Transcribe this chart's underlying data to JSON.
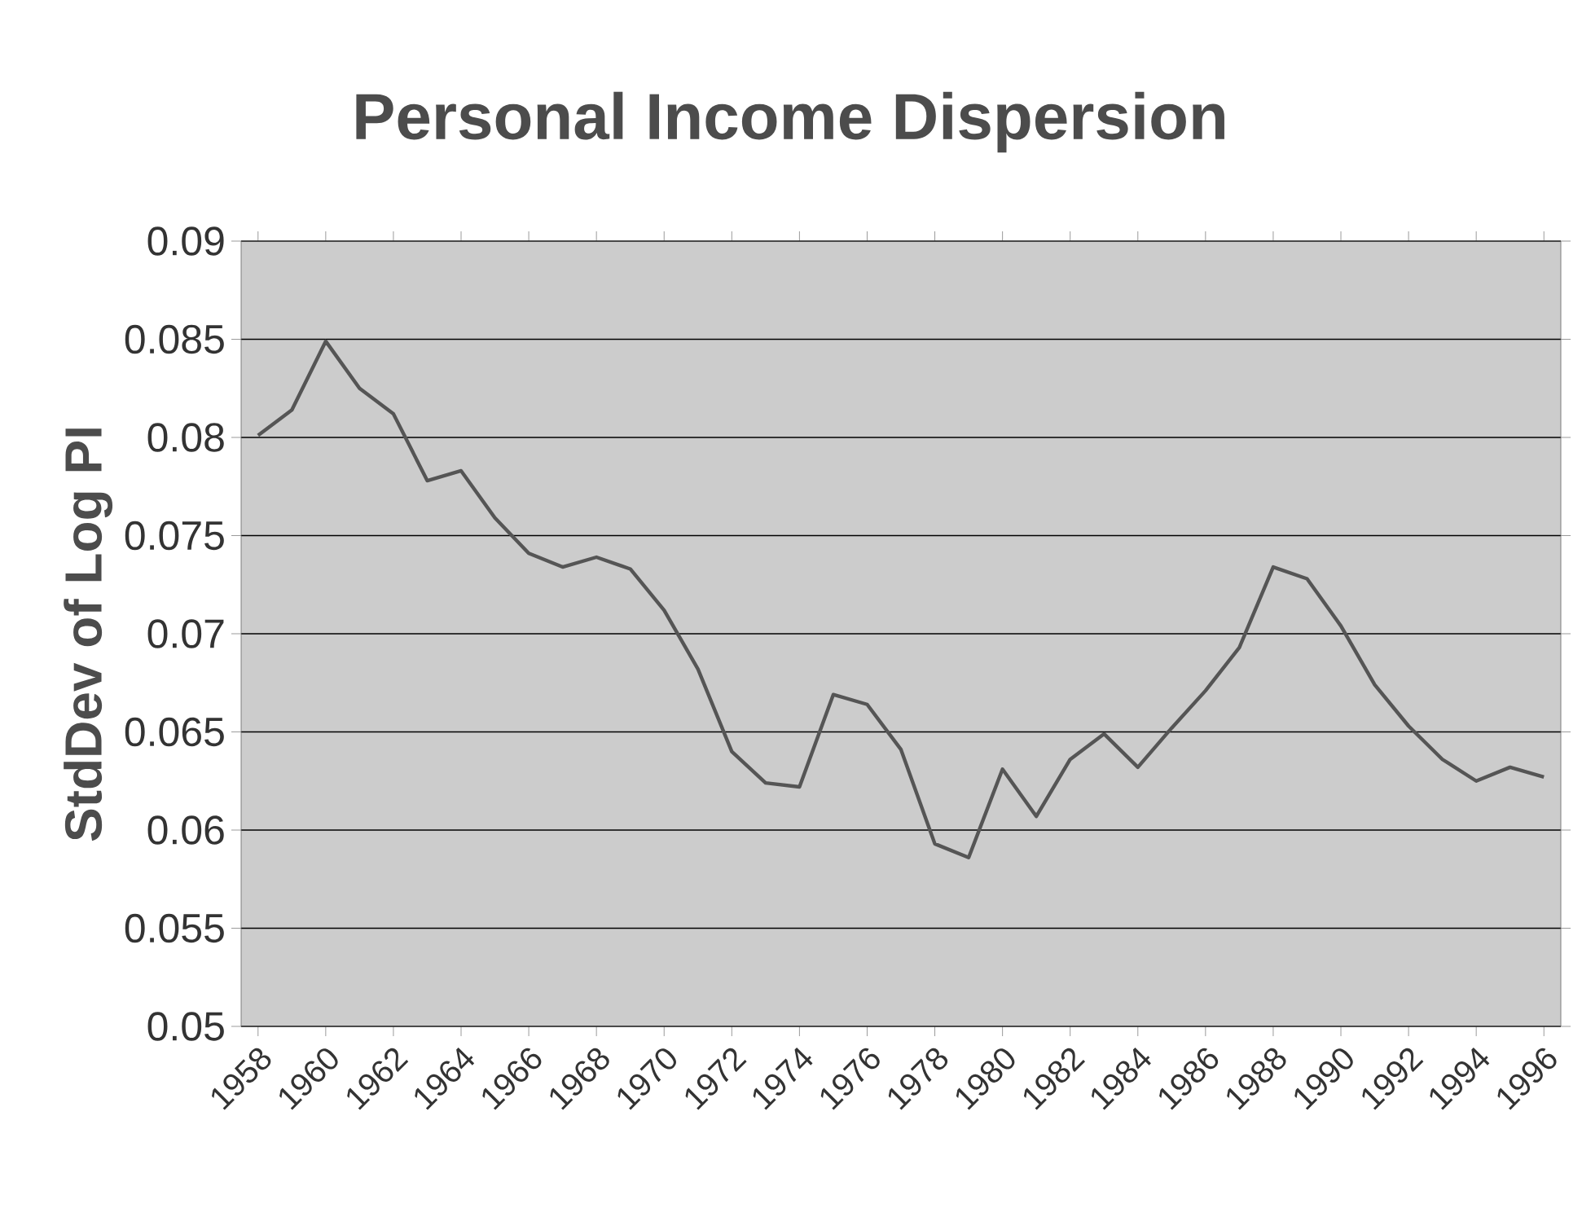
{
  "chart_data": {
    "type": "line",
    "title": "Personal Income Dispersion",
    "ylabel": "StdDev of Log PI",
    "categories": [
      "1958",
      null,
      "1960",
      null,
      "1962",
      null,
      "1964",
      null,
      "1966",
      null,
      "1968",
      null,
      "1970",
      null,
      "1972",
      null,
      "1974",
      null,
      "1976",
      null,
      "1978",
      null,
      "1980",
      null,
      "1982",
      null,
      "1984",
      null,
      "1986",
      null,
      "1988",
      null,
      "1990",
      null,
      "1992",
      null,
      "1994",
      null,
      "1996"
    ],
    "series": [
      {
        "color": "#555555",
        "values": [
          0.0801,
          0.0814,
          0.0849,
          0.0825,
          0.0812,
          0.0778,
          0.0783,
          0.0759,
          0.0741,
          0.0734,
          0.0739,
          0.0733,
          0.0712,
          0.0682,
          0.064,
          0.0624,
          0.0622,
          0.0669,
          0.0664,
          0.0641,
          0.0593,
          0.0586,
          0.0631,
          0.0607,
          0.0636,
          0.0649,
          0.0632,
          0.0652,
          0.0671,
          0.0693,
          0.0734,
          0.0728,
          0.0704,
          0.0674,
          0.0653,
          0.0636,
          0.0625,
          0.0632,
          0.0627
        ]
      }
    ],
    "ylim": [
      0.05,
      0.09
    ],
    "yticks": [
      0.05,
      0.055,
      0.06,
      0.065,
      0.07,
      0.075,
      0.08,
      0.085,
      0.09
    ],
    "grid": "y",
    "marker": "none",
    "line_style": "solid"
  }
}
